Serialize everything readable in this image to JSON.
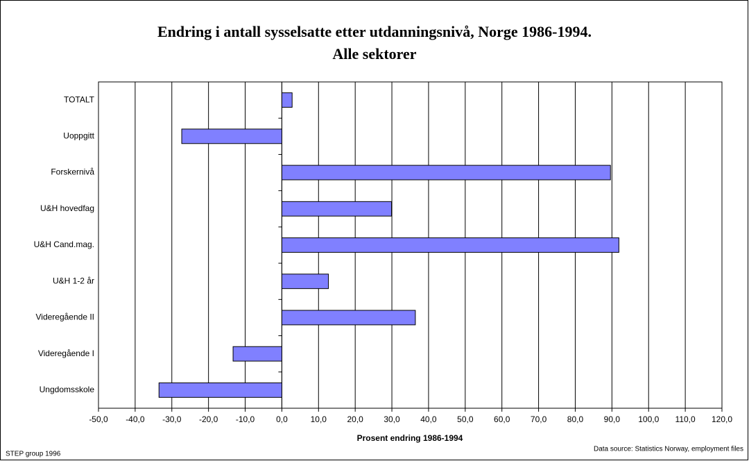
{
  "chart_data": {
    "type": "barh",
    "title": "Endring i antall sysselsatte etter utdanningsnivå, Norge 1986-1994.",
    "subtitle": "Alle sektorer",
    "xlabel": "Prosent endring 1986-1994",
    "annotations": [
      "STEP group 1996",
      "Data source: Statistics Norway, employment files"
    ],
    "categories": [
      "TOTALT",
      "Uoppgitt",
      "Forskernivå",
      "U&H hovedfag",
      "U&H Cand.mag.",
      "U&H 1-2 år",
      "Videregående II",
      "Videregående I",
      "Ungdomsskole"
    ],
    "values": [
      2.8,
      -27.3,
      89.6,
      29.9,
      91.9,
      12.7,
      36.4,
      -13.3,
      -33.5
    ],
    "color": "#8080ff",
    "xlim": [
      -50,
      120
    ],
    "xticks": [
      {
        "value": -50,
        "label": "-50,0"
      },
      {
        "value": -40,
        "label": "-40,0"
      },
      {
        "value": -30,
        "label": "-30,0"
      },
      {
        "value": -20,
        "label": "-20,0"
      },
      {
        "value": -10,
        "label": "-10,0"
      },
      {
        "value": 0,
        "label": "0,0"
      },
      {
        "value": 10,
        "label": "10,0"
      },
      {
        "value": 20,
        "label": "20,0"
      },
      {
        "value": 30,
        "label": "30,0"
      },
      {
        "value": 40,
        "label": "40,0"
      },
      {
        "value": 50,
        "label": "50,0"
      },
      {
        "value": 60,
        "label": "60,0"
      },
      {
        "value": 70,
        "label": "70,0"
      },
      {
        "value": 80,
        "label": "80,0"
      },
      {
        "value": 90,
        "label": "90,0"
      },
      {
        "value": 100,
        "label": "100,0"
      },
      {
        "value": 110,
        "label": "110,0"
      },
      {
        "value": 120,
        "label": "120,0"
      }
    ],
    "grid": true
  }
}
